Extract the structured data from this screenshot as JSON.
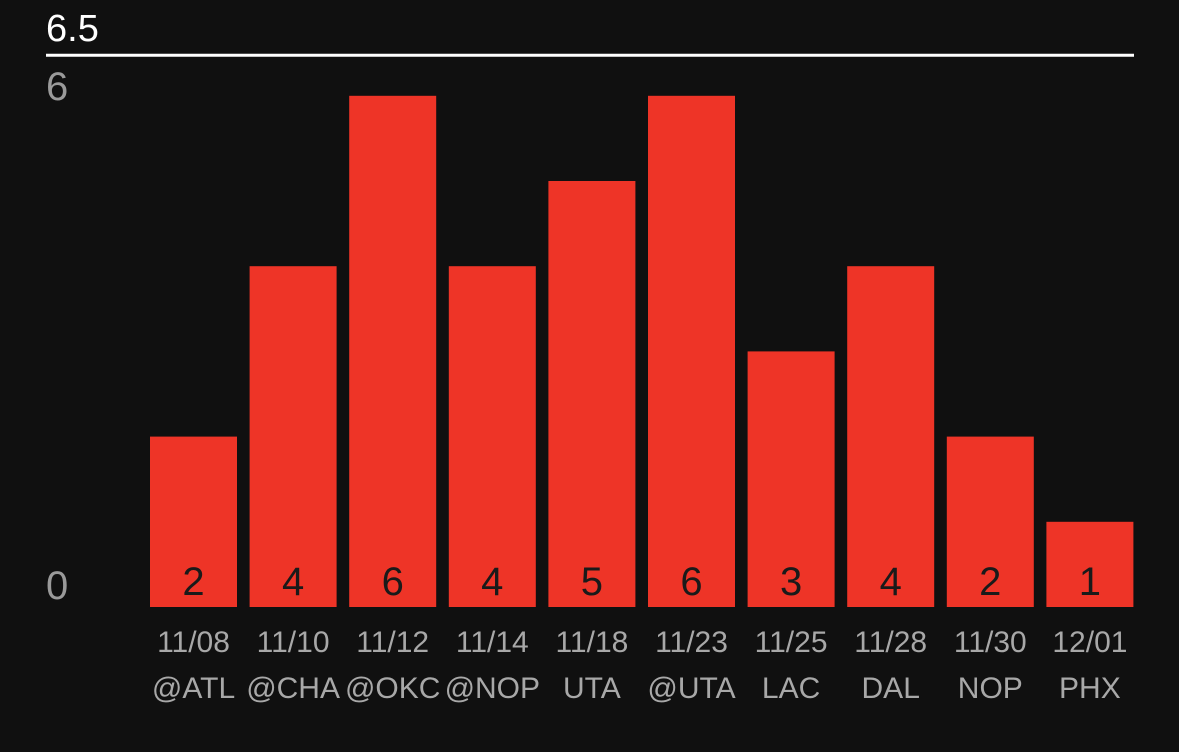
{
  "chart_data": {
    "type": "bar",
    "reference_line": {
      "value": 6.5,
      "label": "6.5",
      "color": "#ffffff"
    },
    "y_ticks": [
      {
        "value": 0,
        "label": "0"
      },
      {
        "value": 6,
        "label": "6"
      }
    ],
    "ylim": [
      0,
      6.5
    ],
    "bar_color": "#ee3427",
    "grid": false,
    "categories": [
      {
        "date": "11/08",
        "opponent": "@ATL"
      },
      {
        "date": "11/10",
        "opponent": "@CHA"
      },
      {
        "date": "11/12",
        "opponent": "@OKC"
      },
      {
        "date": "11/14",
        "opponent": "@NOP"
      },
      {
        "date": "11/18",
        "opponent": "UTA"
      },
      {
        "date": "11/23",
        "opponent": "@UTA"
      },
      {
        "date": "11/25",
        "opponent": "LAC"
      },
      {
        "date": "11/28",
        "opponent": "DAL"
      },
      {
        "date": "11/30",
        "opponent": "NOP"
      },
      {
        "date": "12/01",
        "opponent": "PHX"
      }
    ],
    "values": [
      2,
      4,
      6,
      4,
      5,
      6,
      3,
      4,
      2,
      1
    ],
    "value_labels": [
      "2",
      "4",
      "6",
      "4",
      "5",
      "6",
      "3",
      "4",
      "2",
      "1"
    ]
  }
}
